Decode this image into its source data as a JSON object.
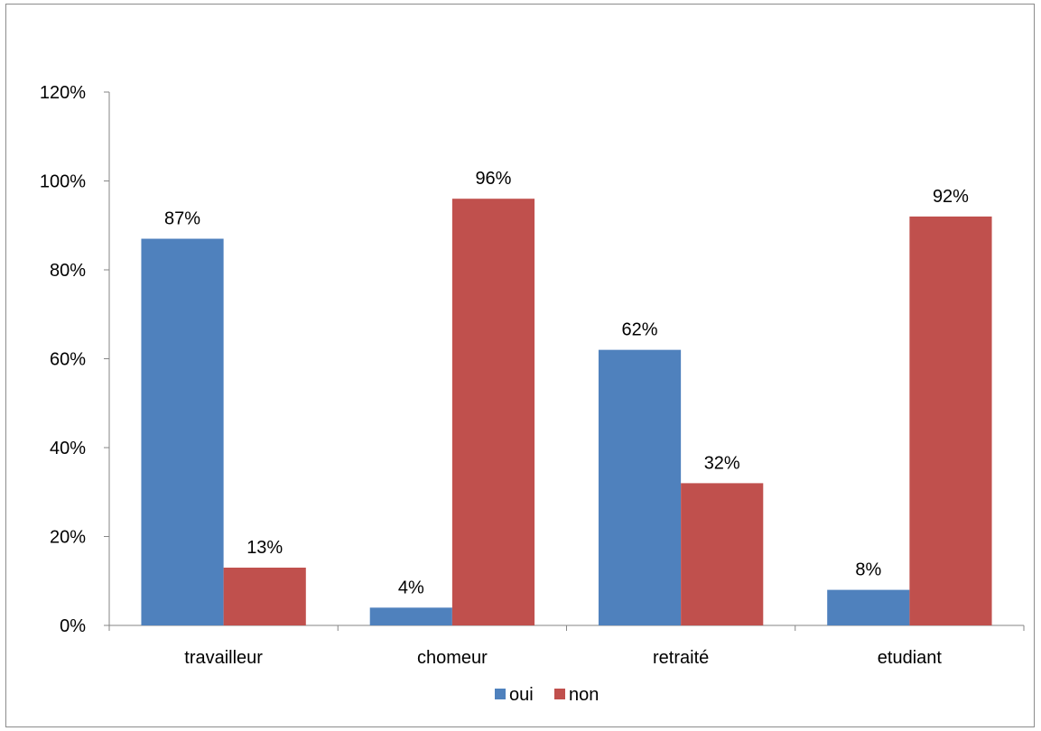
{
  "chart_data": {
    "type": "bar",
    "categories": [
      "travailleur",
      "chomeur",
      "retraité",
      "etudiant"
    ],
    "series": [
      {
        "name": "oui",
        "values": [
          87,
          4,
          62,
          8
        ],
        "color": "#4F81BD"
      },
      {
        "name": "non",
        "values": [
          13,
          96,
          32,
          92
        ],
        "color": "#C0504D"
      }
    ],
    "data_labels": [
      [
        "87%",
        "4%",
        "62%",
        "8%"
      ],
      [
        "13%",
        "96%",
        "32%",
        "92%"
      ]
    ],
    "y_ticks": [
      "0%",
      "20%",
      "40%",
      "60%",
      "80%",
      "100%",
      "120%"
    ],
    "ylim": [
      0,
      120
    ],
    "grid": false,
    "legend_position": "bottom"
  }
}
